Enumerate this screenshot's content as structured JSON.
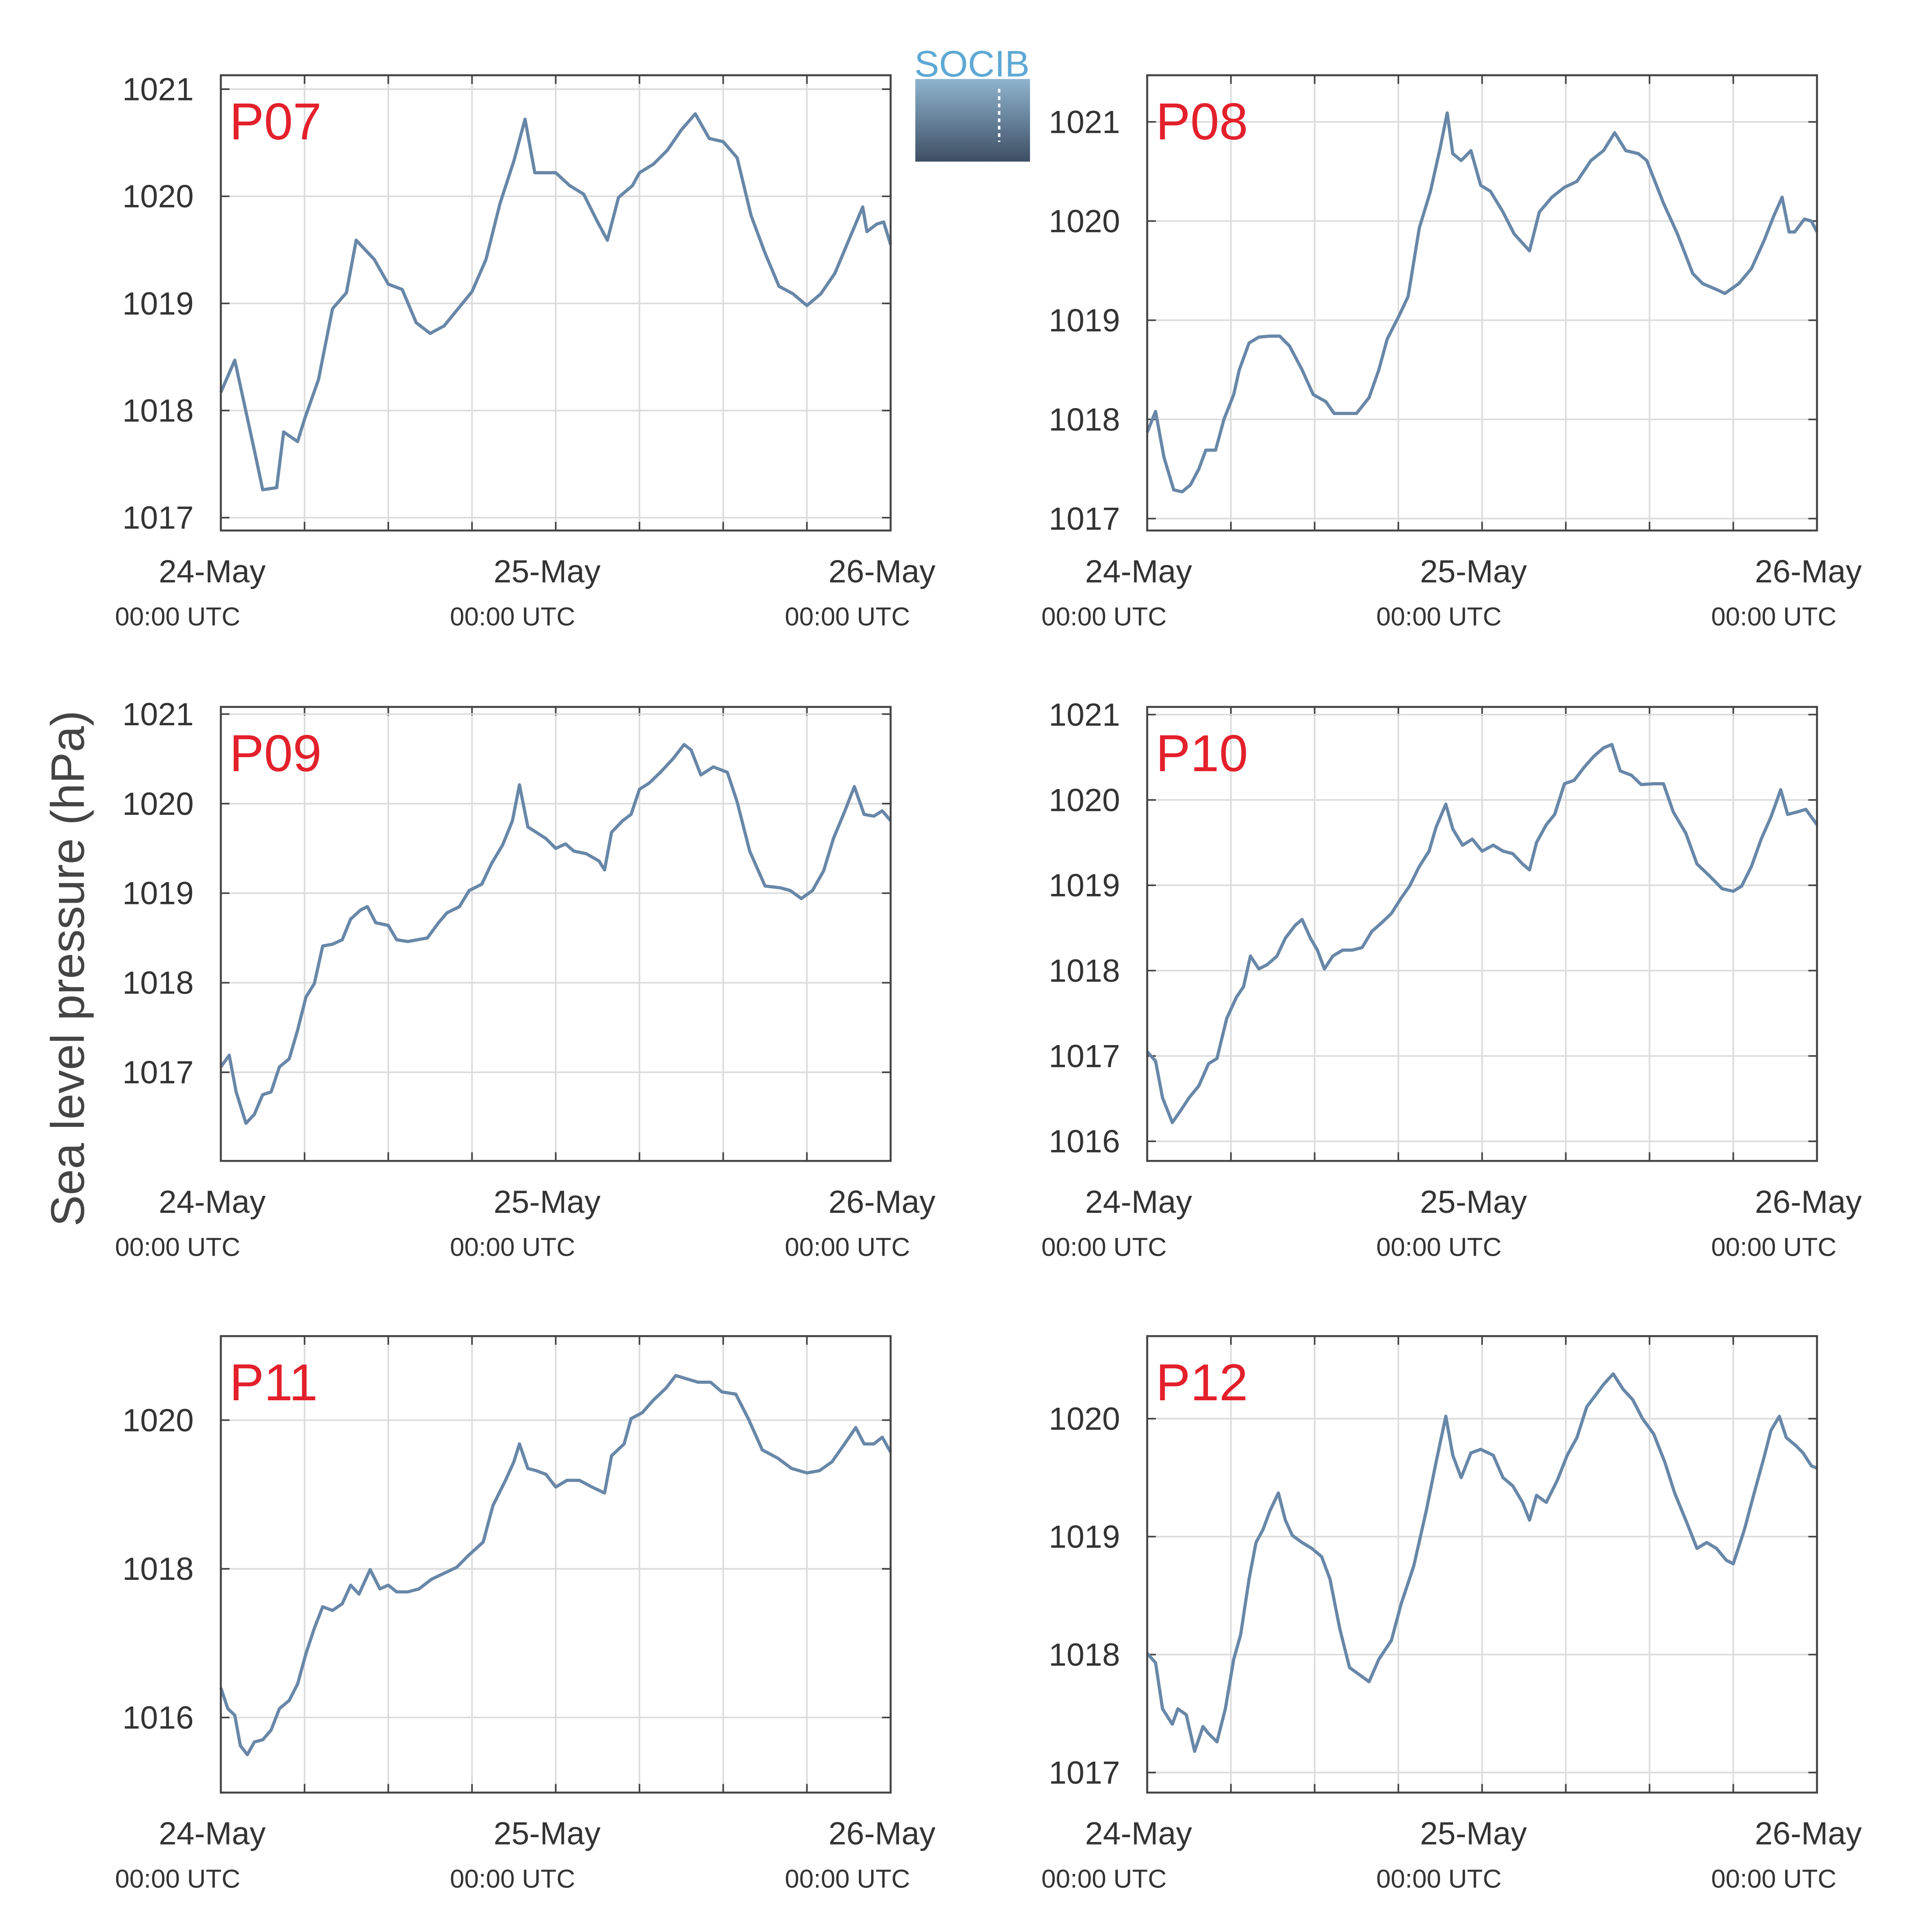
{
  "ylabel": "Sea level pressure (hPa)",
  "logo": "SOCIB",
  "chart_data": [
    {
      "type": "line",
      "title": "P07",
      "x": [
        0,
        1,
        2.5,
        3,
        4,
        4.5,
        5.5,
        6,
        7,
        8,
        9,
        9.7,
        11,
        12,
        13,
        14,
        15,
        16,
        17,
        18,
        19,
        20,
        21,
        21.8,
        22.5,
        23,
        24,
        25,
        26,
        27,
        27.7,
        28.5,
        29.5,
        30,
        31,
        32,
        33,
        34,
        35,
        36,
        37,
        38,
        39,
        40,
        41,
        42,
        43,
        44,
        45,
        46,
        46.3,
        47,
        47.5,
        48
      ],
      "series": [
        {
          "color": "#6887a8",
          "values": [
            1018.17,
            1018.47,
            1017.57,
            1017.26,
            1017.28,
            1017.8,
            1017.71,
            1017.92,
            1018.29,
            1018.95,
            1019.1,
            1019.59,
            1019.41,
            1019.18,
            1019.13,
            1018.82,
            1018.72,
            1018.79,
            1018.95,
            1019.11,
            1019.41,
            1019.93,
            1020.33,
            1020.72,
            1020.22,
            1020.22,
            1020.22,
            1020.1,
            1020.02,
            1019.76,
            1019.59,
            1019.99,
            1020.1,
            1020.22,
            1020.3,
            1020.43,
            1020.62,
            1020.77,
            1020.54,
            1020.51,
            1020.36,
            1019.82,
            1019.47,
            1019.16,
            1019.09,
            1018.98,
            1019.09,
            1019.28,
            1019.59,
            1019.9,
            1019.67,
            1019.74,
            1019.76,
            1019.55
          ]
        }
      ],
      "xlim": [
        0,
        48
      ],
      "xticks": [
        {
          "value": 0,
          "label": "24-May",
          "sublabel": "00:00 UTC"
        },
        {
          "value": 24,
          "label": "25-May",
          "sublabel": "00:00 UTC"
        },
        {
          "value": 48,
          "label": "26-May",
          "sublabel": "00:00 UTC"
        }
      ],
      "xminor_ticks": [
        6,
        12,
        18,
        30,
        36,
        42
      ],
      "ylim": [
        1016.88,
        1021.13
      ],
      "yticks": [
        1017,
        1018,
        1019,
        1020,
        1021
      ],
      "grid": true
    },
    {
      "type": "line",
      "title": "P08",
      "x": [
        0,
        0.6,
        1.2,
        1.9,
        2.5,
        3.1,
        3.7,
        4.2,
        4.9,
        5.5,
        6.2,
        6.6,
        7.3,
        8.0,
        8.8,
        9.5,
        10.2,
        11.1,
        11.9,
        12.8,
        13.4,
        14.1,
        15.0,
        15.9,
        16.6,
        17.2,
        18.1,
        18.7,
        19.5,
        20.3,
        21.0,
        21.5,
        21.9,
        22.5,
        23.2,
        23.9,
        24.6,
        25.5,
        26.3,
        27.4,
        28.1,
        29.0,
        29.9,
        30.8,
        31.8,
        32.7,
        33.5,
        34.3,
        35.2,
        35.8,
        37.0,
        38.0,
        39.1,
        39.8,
        40.8,
        41.4,
        42.4,
        43.3,
        44.2,
        44.9,
        45.5,
        46.0,
        46.4,
        47.1,
        47.6,
        48.0
      ],
      "series": [
        {
          "color": "#6887a8",
          "values": [
            1017.87,
            1018.08,
            1017.62,
            1017.29,
            1017.27,
            1017.34,
            1017.5,
            1017.69,
            1017.69,
            1018.0,
            1018.25,
            1018.5,
            1018.77,
            1018.83,
            1018.84,
            1018.84,
            1018.74,
            1018.5,
            1018.25,
            1018.18,
            1018.06,
            1018.06,
            1018.06,
            1018.22,
            1018.5,
            1018.81,
            1019.06,
            1019.24,
            1019.93,
            1020.3,
            1020.74,
            1021.09,
            1020.68,
            1020.61,
            1020.71,
            1020.36,
            1020.3,
            1020.09,
            1019.87,
            1019.7,
            1020.09,
            1020.24,
            1020.34,
            1020.4,
            1020.61,
            1020.71,
            1020.89,
            1020.71,
            1020.68,
            1020.61,
            1020.18,
            1019.87,
            1019.47,
            1019.37,
            1019.31,
            1019.27,
            1019.37,
            1019.52,
            1019.8,
            1020.05,
            1020.24,
            1019.89,
            1019.89,
            1020.02,
            1020.0,
            1019.89
          ]
        }
      ],
      "xlim": [
        0,
        48
      ],
      "xticks": [
        {
          "value": 0,
          "label": "24-May",
          "sublabel": "00:00 UTC"
        },
        {
          "value": 24,
          "label": "25-May",
          "sublabel": "00:00 UTC"
        },
        {
          "value": 48,
          "label": "26-May",
          "sublabel": "00:00 UTC"
        }
      ],
      "xminor_ticks": [
        6,
        12,
        18,
        30,
        36,
        42
      ],
      "ylim": [
        1016.88,
        1021.47
      ],
      "yticks": [
        1017,
        1018,
        1019,
        1020,
        1021
      ],
      "grid": true
    },
    {
      "type": "line",
      "title": "P09",
      "x": [
        0,
        0.6,
        1.1,
        1.8,
        2.4,
        3.0,
        3.6,
        4.2,
        4.9,
        5.5,
        6.1,
        6.7,
        7.3,
        8.0,
        8.7,
        9.3,
        10.0,
        10.5,
        11.1,
        12.0,
        12.6,
        13.4,
        14.1,
        14.8,
        15.6,
        16.2,
        17.1,
        17.8,
        18.7,
        19.4,
        20.2,
        20.9,
        21.4,
        22.0,
        22.6,
        23.3,
        24.0,
        24.7,
        25.3,
        26.2,
        27.1,
        27.5,
        28.0,
        28.8,
        29.4,
        30.0,
        30.7,
        31.5,
        32.4,
        33.2,
        33.7,
        34.4,
        35.3,
        36.3,
        37.0,
        37.9,
        39.0,
        40.1,
        40.8,
        41.6,
        42.4,
        43.2,
        43.9,
        44.7,
        45.4,
        46.1,
        46.8,
        47.4,
        48.0
      ],
      "series": [
        {
          "color": "#6887a8",
          "values": [
            1017.06,
            1017.19,
            1016.78,
            1016.43,
            1016.53,
            1016.75,
            1016.78,
            1017.06,
            1017.15,
            1017.47,
            1017.84,
            1017.99,
            1018.41,
            1018.43,
            1018.48,
            1018.71,
            1018.81,
            1018.85,
            1018.67,
            1018.64,
            1018.48,
            1018.46,
            1018.48,
            1018.5,
            1018.67,
            1018.78,
            1018.85,
            1019.03,
            1019.1,
            1019.33,
            1019.54,
            1019.81,
            1020.21,
            1019.74,
            1019.68,
            1019.61,
            1019.5,
            1019.55,
            1019.47,
            1019.44,
            1019.36,
            1019.26,
            1019.68,
            1019.81,
            1019.88,
            1020.16,
            1020.23,
            1020.35,
            1020.5,
            1020.66,
            1020.6,
            1020.32,
            1020.41,
            1020.35,
            1020.02,
            1019.47,
            1019.08,
            1019.06,
            1019.03,
            1018.94,
            1019.03,
            1019.25,
            1019.61,
            1019.91,
            1020.19,
            1019.88,
            1019.86,
            1019.92,
            1019.81
          ]
        }
      ],
      "xlim": [
        0,
        48
      ],
      "xticks": [
        {
          "value": 0,
          "label": "24-May",
          "sublabel": "00:00 UTC"
        },
        {
          "value": 24,
          "label": "25-May",
          "sublabel": "00:00 UTC"
        },
        {
          "value": 48,
          "label": "26-May",
          "sublabel": "00:00 UTC"
        }
      ],
      "xminor_ticks": [
        6,
        12,
        18,
        30,
        36,
        42
      ],
      "ylim": [
        1016.01,
        1021.08
      ],
      "yticks": [
        1017,
        1018,
        1019,
        1020,
        1021
      ],
      "grid": true
    },
    {
      "type": "line",
      "title": "P10",
      "x": [
        0,
        0.6,
        1.1,
        1.8,
        2.4,
        3.0,
        3.7,
        4.4,
        5.0,
        5.7,
        6.4,
        6.9,
        7.4,
        8.0,
        8.6,
        9.3,
        9.9,
        10.6,
        11.1,
        11.7,
        12.2,
        12.7,
        13.3,
        14.0,
        14.7,
        15.4,
        16.1,
        16.8,
        17.5,
        18.2,
        18.8,
        19.5,
        20.2,
        20.7,
        21.4,
        21.9,
        22.6,
        23.3,
        24.0,
        24.8,
        25.5,
        26.2,
        26.9,
        27.4,
        27.9,
        28.6,
        29.2,
        29.9,
        30.6,
        31.3,
        32.0,
        32.7,
        33.3,
        33.9,
        34.7,
        35.4,
        36.3,
        37.0,
        37.7,
        38.6,
        39.4,
        40.3,
        41.2,
        42.0,
        42.6,
        43.3,
        44.0,
        44.7,
        45.4,
        45.9,
        46.6,
        47.2,
        48.0
      ],
      "series": [
        {
          "color": "#6887a8",
          "values": [
            1017.05,
            1016.94,
            1016.51,
            1016.22,
            1016.36,
            1016.51,
            1016.65,
            1016.91,
            1016.97,
            1017.44,
            1017.69,
            1017.81,
            1018.17,
            1018.02,
            1018.07,
            1018.17,
            1018.38,
            1018.53,
            1018.6,
            1018.38,
            1018.24,
            1018.02,
            1018.17,
            1018.24,
            1018.24,
            1018.27,
            1018.46,
            1018.56,
            1018.67,
            1018.85,
            1018.99,
            1019.22,
            1019.4,
            1019.68,
            1019.95,
            1019.66,
            1019.47,
            1019.54,
            1019.4,
            1019.47,
            1019.4,
            1019.37,
            1019.25,
            1019.18,
            1019.5,
            1019.71,
            1019.83,
            1020.19,
            1020.23,
            1020.38,
            1020.51,
            1020.61,
            1020.65,
            1020.34,
            1020.29,
            1020.18,
            1020.19,
            1020.19,
            1019.86,
            1019.61,
            1019.25,
            1019.11,
            1018.96,
            1018.93,
            1018.99,
            1019.22,
            1019.54,
            1019.8,
            1020.12,
            1019.83,
            1019.86,
            1019.89,
            1019.71
          ]
        }
      ],
      "xlim": [
        0,
        48
      ],
      "xticks": [
        {
          "value": 0,
          "label": "24-May",
          "sublabel": "00:00 UTC"
        },
        {
          "value": 24,
          "label": "25-May",
          "sublabel": "00:00 UTC"
        },
        {
          "value": 48,
          "label": "26-May",
          "sublabel": "00:00 UTC"
        }
      ],
      "xminor_ticks": [
        6,
        12,
        18,
        30,
        36,
        42
      ],
      "ylim": [
        1015.77,
        1021.09
      ],
      "yticks": [
        1016,
        1017,
        1018,
        1019,
        1020,
        1021
      ],
      "grid": true
    },
    {
      "type": "line",
      "title": "P11",
      "x": [
        0,
        0.5,
        1.0,
        1.4,
        1.9,
        2.4,
        3.0,
        3.6,
        4.2,
        4.9,
        5.5,
        6.1,
        6.7,
        7.3,
        8.0,
        8.7,
        9.3,
        9.9,
        10.7,
        11.4,
        12.0,
        12.6,
        13.4,
        14.2,
        15.1,
        16.0,
        16.9,
        17.8,
        18.8,
        19.5,
        20.4,
        21.0,
        21.4,
        22.0,
        22.6,
        23.3,
        24.0,
        24.8,
        25.7,
        26.6,
        27.5,
        28.0,
        28.9,
        29.4,
        30.2,
        31.0,
        31.9,
        32.6,
        33.3,
        34.2,
        35.1,
        35.9,
        36.9,
        37.8,
        38.8,
        39.9,
        40.9,
        42.0,
        42.9,
        43.8,
        44.7,
        45.5,
        46.1,
        46.8,
        47.4,
        48.0
      ],
      "series": [
        {
          "color": "#6887a8",
          "values": [
            1016.4,
            1016.12,
            1016.03,
            1015.62,
            1015.5,
            1015.67,
            1015.7,
            1015.83,
            1016.12,
            1016.23,
            1016.45,
            1016.86,
            1017.2,
            1017.49,
            1017.44,
            1017.53,
            1017.78,
            1017.66,
            1017.99,
            1017.73,
            1017.78,
            1017.69,
            1017.69,
            1017.73,
            1017.86,
            1017.94,
            1018.02,
            1018.19,
            1018.36,
            1018.85,
            1019.19,
            1019.44,
            1019.68,
            1019.35,
            1019.32,
            1019.27,
            1019.1,
            1019.19,
            1019.19,
            1019.1,
            1019.02,
            1019.52,
            1019.68,
            1020.02,
            1020.1,
            1020.27,
            1020.43,
            1020.6,
            1020.56,
            1020.51,
            1020.51,
            1020.38,
            1020.35,
            1020.02,
            1019.6,
            1019.49,
            1019.35,
            1019.29,
            1019.32,
            1019.44,
            1019.68,
            1019.9,
            1019.68,
            1019.68,
            1019.77,
            1019.57
          ]
        }
      ],
      "xlim": [
        0,
        48
      ],
      "xticks": [
        {
          "value": 0,
          "label": "24-May",
          "sublabel": "00:00 UTC"
        },
        {
          "value": 24,
          "label": "25-May",
          "sublabel": "00:00 UTC"
        },
        {
          "value": 48,
          "label": "26-May",
          "sublabel": "00:00 UTC"
        }
      ],
      "xminor_ticks": [
        6,
        12,
        18,
        30,
        36,
        42
      ],
      "ylim": [
        1014.99,
        1021.13
      ],
      "yticks": [
        1016,
        1018,
        1020
      ],
      "grid": true
    },
    {
      "type": "line",
      "title": "P12",
      "x": [
        0,
        0.6,
        1.1,
        1.8,
        2.2,
        2.8,
        3.4,
        4.0,
        4.4,
        5.0,
        5.6,
        6.2,
        6.7,
        7.3,
        7.8,
        8.3,
        8.8,
        9.4,
        9.9,
        10.4,
        11.1,
        11.8,
        12.5,
        13.1,
        13.8,
        14.5,
        15.2,
        15.9,
        16.6,
        17.5,
        18.2,
        19.1,
        20.0,
        20.7,
        21.4,
        21.9,
        22.5,
        23.2,
        23.9,
        24.8,
        25.5,
        26.2,
        26.9,
        27.4,
        27.9,
        28.6,
        29.4,
        30.1,
        30.8,
        31.5,
        32.2,
        32.7,
        33.4,
        34.1,
        34.8,
        35.5,
        36.3,
        37.1,
        37.8,
        38.7,
        39.4,
        40.1,
        40.8,
        41.5,
        42.0,
        42.8,
        43.5,
        44.2,
        44.7,
        45.3,
        45.8,
        46.5,
        47.0,
        47.6,
        48.0
      ],
      "series": [
        {
          "color": "#6887a8",
          "values": [
            1018.01,
            1017.93,
            1017.54,
            1017.41,
            1017.54,
            1017.49,
            1017.18,
            1017.39,
            1017.33,
            1017.26,
            1017.54,
            1017.96,
            1018.17,
            1018.64,
            1018.95,
            1019.06,
            1019.22,
            1019.37,
            1019.14,
            1019.01,
            1018.95,
            1018.9,
            1018.83,
            1018.64,
            1018.22,
            1017.89,
            1017.83,
            1017.77,
            1017.96,
            1018.12,
            1018.43,
            1018.75,
            1019.22,
            1019.63,
            1020.02,
            1019.69,
            1019.5,
            1019.71,
            1019.74,
            1019.69,
            1019.5,
            1019.43,
            1019.29,
            1019.14,
            1019.35,
            1019.29,
            1019.48,
            1019.69,
            1019.84,
            1020.1,
            1020.21,
            1020.29,
            1020.38,
            1020.25,
            1020.16,
            1020.0,
            1019.87,
            1019.63,
            1019.37,
            1019.11,
            1018.9,
            1018.95,
            1018.9,
            1018.8,
            1018.77,
            1019.06,
            1019.37,
            1019.67,
            1019.9,
            1020.02,
            1019.84,
            1019.77,
            1019.71,
            1019.6,
            1019.58
          ]
        }
      ],
      "xlim": [
        0,
        48
      ],
      "xticks": [
        {
          "value": 0,
          "label": "24-May",
          "sublabel": "00:00 UTC"
        },
        {
          "value": 24,
          "label": "25-May",
          "sublabel": "00:00 UTC"
        },
        {
          "value": 48,
          "label": "26-May",
          "sublabel": "00:00 UTC"
        }
      ],
      "xminor_ticks": [
        6,
        12,
        18,
        30,
        36,
        42
      ],
      "ylim": [
        1016.83,
        1020.7
      ],
      "yticks": [
        1017,
        1018,
        1019,
        1020
      ],
      "grid": true
    }
  ]
}
